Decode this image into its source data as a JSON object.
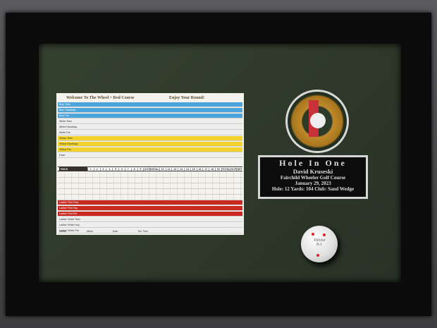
{
  "scorecard": {
    "title": "Welcome To The Wheel ~ Red Course",
    "greeting": "Enjoy Your Round!",
    "top_rows": [
      {
        "label": "Blue Tees",
        "color": "blue"
      },
      {
        "label": "Blue Handicap",
        "color": "blue"
      },
      {
        "label": "Blue Par",
        "color": "blue"
      },
      {
        "label": "White Tees",
        "color": "gray"
      },
      {
        "label": "White Handicap",
        "color": "gray"
      },
      {
        "label": "White Par",
        "color": "gray"
      },
      {
        "label": "Yellow Tees",
        "color": "yellow"
      },
      {
        "label": "Yellow Handicap",
        "color": "yellow"
      },
      {
        "label": "Yellow Par",
        "color": "yellow"
      },
      {
        "label": "Dave",
        "color": "gray"
      }
    ],
    "hole_row": {
      "label": "HOLE",
      "cols": [
        "1",
        "2",
        "3",
        "4",
        "5",
        "6",
        "7",
        "8",
        "9",
        "OUT",
        "INITIAL",
        "10",
        "11",
        "12",
        "13",
        "14",
        "15",
        "16",
        "17",
        "18",
        "IN",
        "TOTAL",
        "HCP",
        "NET"
      ]
    },
    "bottom_rows": [
      {
        "label": "Ladies' Red Tees",
        "color": "red"
      },
      {
        "label": "Ladies' Red Hcp",
        "color": "red"
      },
      {
        "label": "Ladies' Red Par",
        "color": "red"
      },
      {
        "label": "Ladies' White Tees",
        "color": "gray"
      },
      {
        "label": "Ladies' White Hcp",
        "color": "gray"
      },
      {
        "label": "Ladies' White Par",
        "color": "gray"
      }
    ],
    "footer": [
      "Scorer",
      "Attest",
      "Date",
      "Tee Time"
    ]
  },
  "plaque": {
    "title": "Hole In One",
    "name": "David Kruseski",
    "course": "Fairchild Wheeler Golf Course",
    "date": "January 29, 2023",
    "details": "Hole: 12  Yards: 104  Club: Sand Wedge"
  },
  "ball": {
    "brand": "Titleist",
    "number": "8-1"
  },
  "colors": {
    "mat": "#2e3a2a",
    "frame": "#0b0b0b",
    "plaque": "#0c0c0c"
  }
}
